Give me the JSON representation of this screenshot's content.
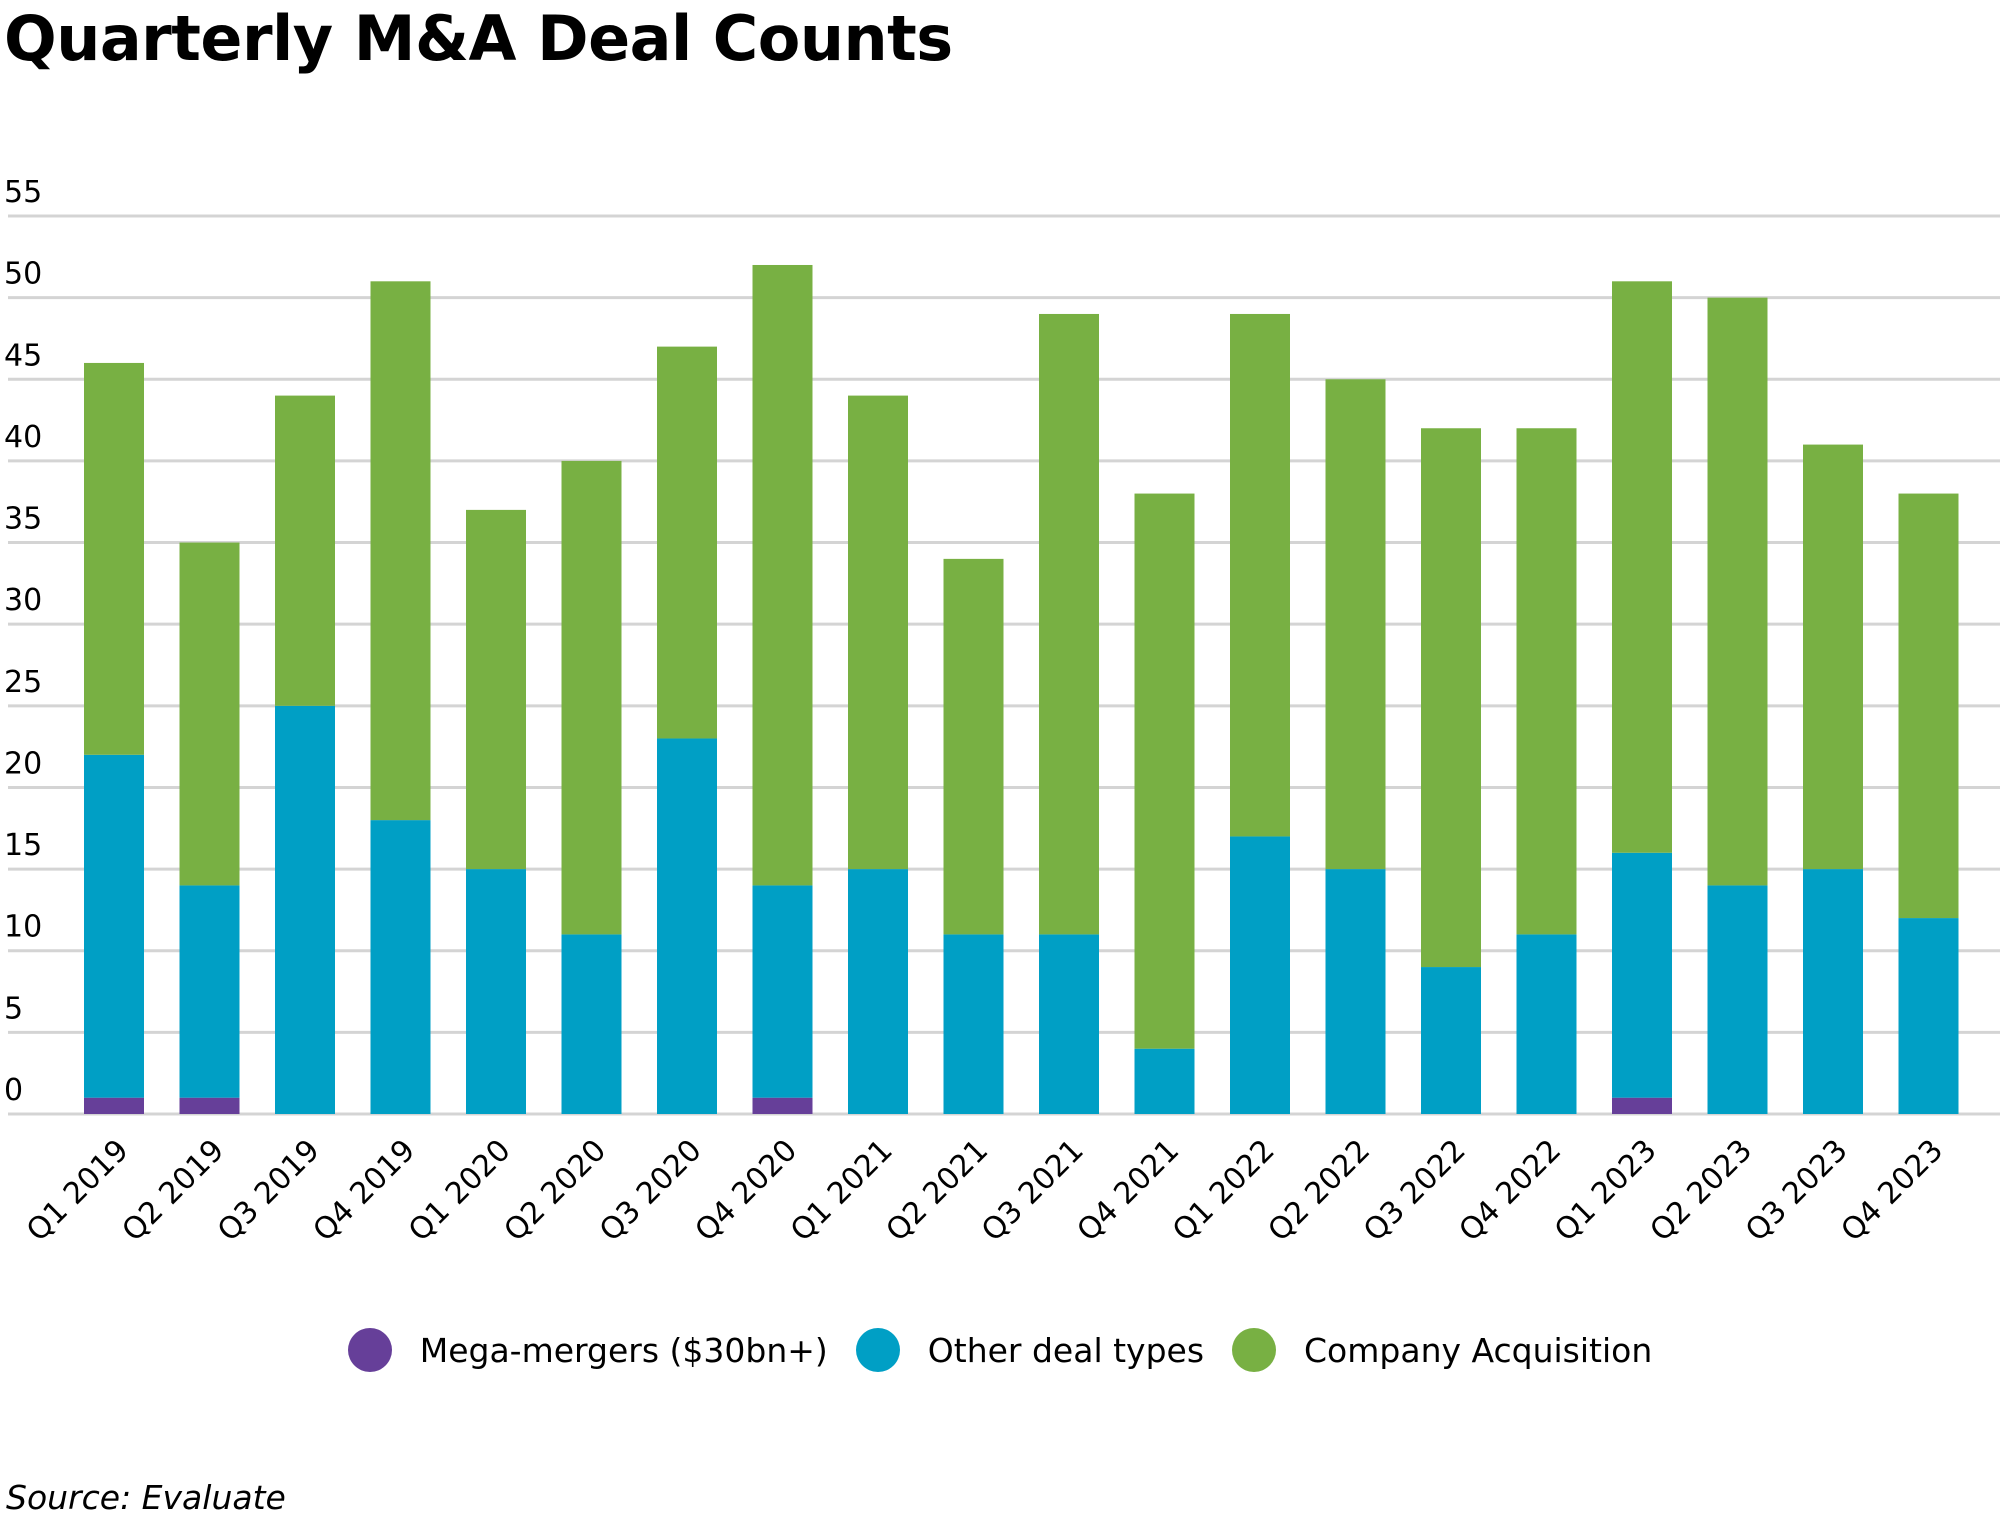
{
  "chart_data": {
    "type": "bar",
    "stacked": true,
    "title": "Quarterly M&A Deal Counts",
    "xlabel": "",
    "ylabel": "",
    "ylim": [
      0,
      55
    ],
    "yticks": [
      0,
      5,
      10,
      15,
      20,
      25,
      30,
      35,
      40,
      45,
      50,
      55
    ],
    "grid": true,
    "legend_position": "bottom-center",
    "categories": [
      "Q1 2019",
      "Q2 2019",
      "Q3 2019",
      "Q4 2019",
      "Q1 2020",
      "Q2 2020",
      "Q3 2020",
      "Q4 2020",
      "Q1 2021",
      "Q2 2021",
      "Q3 2021",
      "Q4 2021",
      "Q1 2022",
      "Q2 2022",
      "Q3 2022",
      "Q4 2022",
      "Q1 2023",
      "Q2 2023",
      "Q3 2023",
      "Q4 2023"
    ],
    "series": [
      {
        "name": "Mega-mergers ($30bn+)",
        "color": "#663f99",
        "values": [
          1,
          1,
          0,
          0,
          0,
          0,
          0,
          1,
          0,
          0,
          0,
          0,
          0,
          0,
          0,
          0,
          1,
          0,
          0,
          0
        ]
      },
      {
        "name": "Other deal types",
        "color": "#009fc5",
        "values": [
          21,
          13,
          25,
          18,
          15,
          11,
          23,
          13,
          15,
          11,
          11,
          4,
          17,
          15,
          9,
          11,
          15,
          14,
          15,
          12
        ]
      },
      {
        "name": "Company Acquisition",
        "color": "#78b043",
        "values": [
          24,
          21,
          19,
          33,
          22,
          29,
          24,
          38,
          29,
          23,
          38,
          34,
          32,
          30,
          33,
          31,
          35,
          36,
          26,
          26
        ]
      }
    ],
    "totals": [
      46,
      35,
      44,
      51,
      37,
      40,
      47,
      52,
      44,
      34,
      49,
      38,
      49,
      45,
      42,
      42,
      51,
      50,
      41,
      38
    ],
    "source": "Source: Evaluate"
  },
  "colors": {
    "grid": "#d4d4d4",
    "text": "#000000"
  }
}
